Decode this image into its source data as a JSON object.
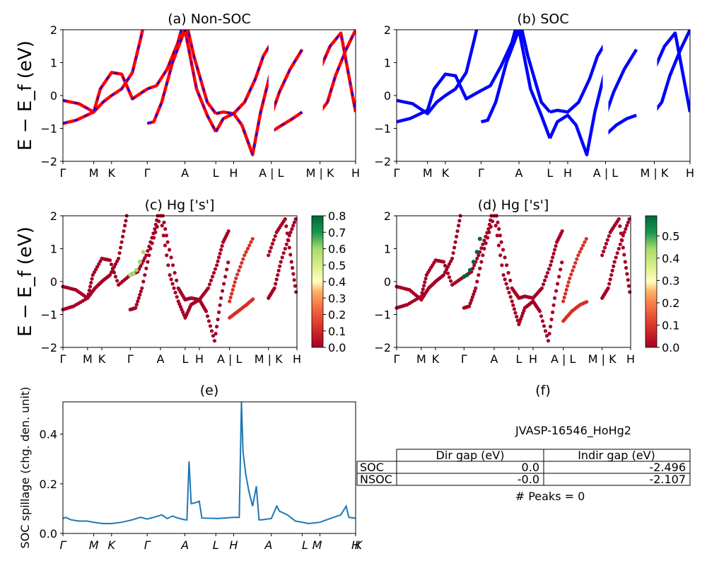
{
  "colors": {
    "nonsoc_line": "#ff0000",
    "nonsoc_dash": "#0000ff",
    "soc_line": "#0000ff",
    "spillage_line": "#1f77b4",
    "colormap": "RdYlGn"
  },
  "chart_data": [
    {
      "panel": "a",
      "type": "line",
      "title": "(a) Non-SOC",
      "ylabel": "E − E_f (eV)",
      "ylim": [
        -2,
        2
      ],
      "yticks": [
        "2",
        "1",
        "0",
        "−1",
        "−2"
      ],
      "xtick_labels": [
        "Γ",
        "M",
        "K",
        "Γ",
        "A",
        "L",
        "H",
        "A | L",
        "M | K",
        "H"
      ],
      "k_positions": [
        0,
        0.577,
        0.91,
        1.577,
        2.283,
        2.861,
        3.194,
        3.9,
        4.477,
        4.81,
        5.477
      ],
      "series": [
        {
          "name": "band 1",
          "x": [
            0,
            0.3,
            0.577,
            0.75,
            0.91,
            1.1,
            1.3,
            1.45,
            1.577
          ],
          "y": [
            -0.15,
            -0.25,
            -0.5,
            -0.2,
            0.0,
            0.2,
            0.7,
            1.7,
            2.6
          ]
        },
        {
          "name": "band 2",
          "x": [
            0,
            0.25,
            0.577,
            0.7,
            0.91,
            1.1,
            1.3,
            1.577
          ],
          "y": [
            -0.85,
            -0.75,
            -0.5,
            0.2,
            0.7,
            0.65,
            -0.1,
            0.2
          ]
        },
        {
          "name": "band 3",
          "x": [
            1.577,
            1.75,
            1.95,
            2.15,
            2.283,
            2.45,
            2.7,
            2.861
          ],
          "y": [
            0.2,
            0.3,
            0.8,
            1.6,
            2.4,
            1.2,
            -0.2,
            -0.55
          ]
        },
        {
          "name": "band 4",
          "x": [
            1.577,
            1.7,
            1.85,
            2.05,
            2.283,
            2.5,
            2.7,
            2.861
          ],
          "y": [
            -0.85,
            -0.8,
            -0.2,
            1.0,
            2.0,
            0.2,
            -0.6,
            -1.1
          ]
        },
        {
          "name": "band 5",
          "x": [
            2.861,
            3.0,
            3.194,
            3.4,
            3.6,
            3.75,
            3.9
          ],
          "y": [
            -0.55,
            -0.5,
            -0.55,
            -0.2,
            0.5,
            1.2,
            1.6
          ]
        },
        {
          "name": "band 6",
          "x": [
            2.861,
            3.0,
            3.194,
            3.35,
            3.55,
            3.7,
            3.9
          ],
          "y": [
            -1.1,
            -0.7,
            -0.55,
            -0.9,
            -1.8,
            -0.5,
            0.8
          ]
        },
        {
          "name": "band 7",
          "x": [
            3.9,
            4.1,
            4.3,
            4.477
          ],
          "y": [
            -1.1,
            -0.9,
            -0.7,
            -0.5
          ]
        },
        {
          "name": "band 8",
          "x": [
            3.9,
            4.05,
            4.25,
            4.477
          ],
          "y": [
            -0.6,
            0.1,
            0.8,
            1.4
          ]
        },
        {
          "name": "band 9",
          "x": [
            4.81,
            5.0,
            5.2,
            5.35,
            5.477
          ],
          "y": [
            0.8,
            1.5,
            1.9,
            0.6,
            -0.5
          ]
        },
        {
          "name": "band 10",
          "x": [
            4.81,
            4.95,
            5.1,
            5.3,
            5.477
          ],
          "y": [
            -0.5,
            -0.2,
            0.6,
            1.4,
            2.0
          ]
        }
      ]
    },
    {
      "panel": "b",
      "type": "line",
      "title": "(b) SOC",
      "ylim": [
        -2,
        2
      ],
      "yticks": [
        "2",
        "1",
        "0",
        "−1",
        "−2"
      ],
      "xtick_labels": [
        "Γ",
        "M",
        "K",
        "Γ",
        "A",
        "L",
        "H",
        "A | L",
        "M | K",
        "H"
      ],
      "k_positions": [
        0,
        0.577,
        0.91,
        1.577,
        2.283,
        2.861,
        3.194,
        3.9,
        4.477,
        4.81,
        5.477
      ],
      "series": [
        {
          "name": "band 1",
          "x": [
            0,
            0.3,
            0.577,
            0.75,
            0.91,
            1.1,
            1.3,
            1.45,
            1.577
          ],
          "y": [
            -0.15,
            -0.25,
            -0.55,
            -0.2,
            0.0,
            0.2,
            0.7,
            1.7,
            2.6
          ]
        },
        {
          "name": "band 2",
          "x": [
            0,
            0.25,
            0.577,
            0.7,
            0.91,
            1.1,
            1.3,
            1.577
          ],
          "y": [
            -0.8,
            -0.7,
            -0.45,
            0.2,
            0.65,
            0.6,
            -0.1,
            0.15
          ]
        },
        {
          "name": "band 3",
          "x": [
            1.577,
            1.75,
            1.95,
            2.15,
            2.283,
            2.45,
            2.7,
            2.861
          ],
          "y": [
            0.15,
            0.3,
            0.9,
            1.6,
            2.4,
            1.2,
            -0.2,
            -0.5
          ]
        },
        {
          "name": "band 4",
          "x": [
            1.577,
            1.7,
            1.85,
            2.05,
            2.283,
            2.5,
            2.7,
            2.861
          ],
          "y": [
            -0.8,
            -0.75,
            -0.2,
            1.0,
            2.0,
            0.2,
            -0.6,
            -1.3
          ]
        },
        {
          "name": "band 5",
          "x": [
            2.861,
            3.0,
            3.194,
            3.4,
            3.6,
            3.75,
            3.9
          ],
          "y": [
            -0.5,
            -0.45,
            -0.5,
            -0.2,
            0.5,
            1.2,
            1.6
          ]
        },
        {
          "name": "band 6",
          "x": [
            2.861,
            3.0,
            3.194,
            3.35,
            3.55,
            3.7,
            3.9
          ],
          "y": [
            -1.3,
            -0.8,
            -0.6,
            -0.9,
            -1.8,
            -0.5,
            0.8
          ]
        },
        {
          "name": "band 7",
          "x": [
            3.9,
            4.1,
            4.3,
            4.477
          ],
          "y": [
            -1.2,
            -0.9,
            -0.7,
            -0.6
          ]
        },
        {
          "name": "band 8",
          "x": [
            3.9,
            4.05,
            4.25,
            4.477
          ],
          "y": [
            -0.6,
            0.1,
            0.8,
            1.4
          ]
        },
        {
          "name": "band 9",
          "x": [
            4.81,
            5.0,
            5.2,
            5.35,
            5.477
          ],
          "y": [
            0.8,
            1.5,
            1.9,
            0.6,
            -0.5
          ]
        },
        {
          "name": "band 10",
          "x": [
            4.81,
            4.95,
            5.1,
            5.3,
            5.477
          ],
          "y": [
            -0.5,
            -0.2,
            0.6,
            1.4,
            2.0
          ]
        }
      ]
    },
    {
      "panel": "c",
      "type": "scatter",
      "title": "(c)  Hg ['s']",
      "ylabel": "E − E_f (eV)",
      "ylim": [
        -2,
        2
      ],
      "yticks": [
        "2",
        "1",
        "0",
        "−1",
        "−2"
      ],
      "xtick_labels": [
        "Γ",
        "M",
        "K",
        "Γ",
        "A",
        "L",
        "H",
        "A | L",
        "M | K",
        "H"
      ],
      "colorbar": {
        "min": 0.0,
        "max": 0.8,
        "ticks": [
          "0.0",
          "0.1",
          "0.2",
          "0.3",
          "0.4",
          "0.5",
          "0.6",
          "0.7",
          "0.8"
        ]
      },
      "highlight": {
        "x": [
          1.577,
          1.65,
          1.72,
          1.8,
          1.88
        ],
        "y": [
          0.2,
          0.25,
          0.35,
          0.6,
          0.9
        ],
        "weight": 0.55
      }
    },
    {
      "panel": "d",
      "type": "scatter",
      "title": "(d) Hg ['s']",
      "ylim": [
        -2,
        2
      ],
      "yticks": [
        "2",
        "1",
        "0",
        "−1",
        "−2"
      ],
      "xtick_labels": [
        "Γ",
        "M",
        "K",
        "Γ",
        "A",
        "L",
        "H",
        "A | L",
        "M | K",
        "H"
      ],
      "colorbar": {
        "min": 0.0,
        "max": 0.59,
        "ticks": [
          "0.0",
          "0.1",
          "0.2",
          "0.3",
          "0.4",
          "0.5"
        ]
      },
      "highlight": {
        "x": [
          1.577,
          1.65,
          1.72,
          1.8,
          1.88,
          1.95
        ],
        "y": [
          0.15,
          0.2,
          0.35,
          0.6,
          0.9,
          1.3
        ],
        "weight": 0.58
      }
    },
    {
      "panel": "e",
      "type": "line",
      "title": "(e)",
      "ylabel": "SOC spillage (chg. den. unit)",
      "ylim": [
        0,
        0.53
      ],
      "yticks": [
        "0.0",
        "0.2",
        "0.4"
      ],
      "xtick_labels": [
        "Γ",
        "M",
        "K",
        "Γ",
        "A",
        "L",
        "H",
        "A",
        "L",
        "M",
        "K",
        "H"
      ],
      "x": [
        0,
        0.05,
        0.15,
        0.3,
        0.45,
        0.577,
        0.75,
        0.91,
        1.1,
        1.3,
        1.45,
        1.577,
        1.7,
        1.85,
        1.95,
        2.05,
        2.15,
        2.283,
        2.32,
        2.36,
        2.4,
        2.5,
        2.55,
        2.6,
        2.9,
        3.194,
        3.3,
        3.34,
        3.37,
        3.42,
        3.48,
        3.55,
        3.62,
        3.67,
        3.72,
        3.9,
        4.0,
        4.05,
        4.2,
        4.35,
        4.477,
        4.6,
        4.81,
        5.0,
        5.2,
        5.3,
        5.35,
        5.45,
        5.477
      ],
      "y": [
        0.06,
        0.065,
        0.055,
        0.05,
        0.05,
        0.045,
        0.04,
        0.04,
        0.045,
        0.055,
        0.065,
        0.058,
        0.065,
        0.075,
        0.06,
        0.07,
        0.062,
        0.055,
        0.055,
        0.29,
        0.12,
        0.125,
        0.13,
        0.062,
        0.06,
        0.065,
        0.065,
        0.53,
        0.33,
        0.24,
        0.17,
        0.11,
        0.19,
        0.055,
        0.055,
        0.06,
        0.11,
        0.09,
        0.075,
        0.05,
        0.045,
        0.04,
        0.045,
        0.06,
        0.075,
        0.11,
        0.065,
        0.062,
        0.062
      ]
    }
  ],
  "table_panel": {
    "title": "(f)",
    "material": "JVASP-16546_HoHg2",
    "columns": [
      "Dir gap (eV)",
      "Indir gap (eV)"
    ],
    "rows": [
      {
        "label": "SOC",
        "dir": "0.0",
        "indir": "-2.496"
      },
      {
        "label": "NSOC",
        "dir": "-0.0",
        "indir": "-2.107"
      }
    ],
    "peaks": "# Peaks = 0"
  }
}
